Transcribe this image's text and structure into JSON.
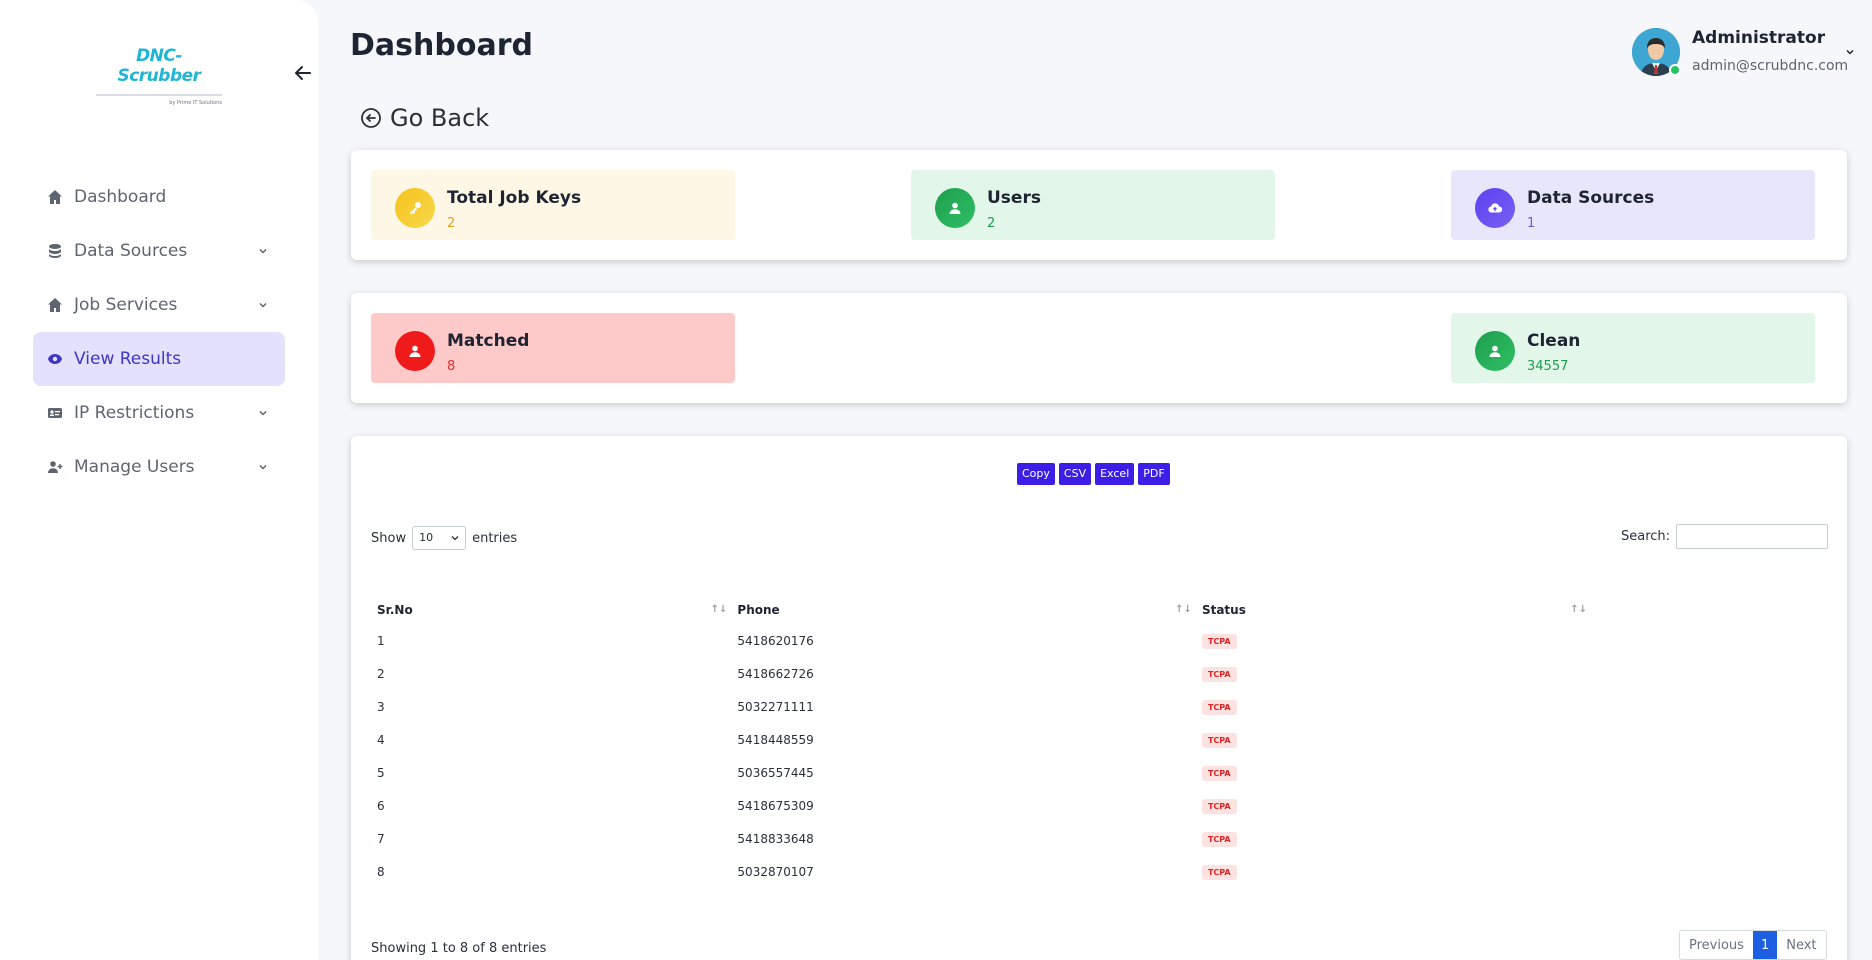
{
  "brand": {
    "name": "DNC-Scrubber",
    "tagline": "by Prime IT Solutions",
    "colors": {
      "accent": "#3d1ee6",
      "active_bg": "#e3e1fb",
      "logo": "#1fb6d6"
    }
  },
  "sidebar": {
    "items": [
      {
        "label": "Dashboard",
        "icon": "home-icon"
      },
      {
        "label": "Data Sources",
        "icon": "database-icon"
      },
      {
        "label": "Job Services",
        "icon": "home-icon"
      },
      {
        "label": "View Results",
        "icon": "eye-icon"
      },
      {
        "label": "IP Restrictions",
        "icon": "id-card-icon"
      },
      {
        "label": "Manage Users",
        "icon": "user-plus-icon"
      }
    ]
  },
  "header": {
    "title": "Dashboard",
    "user": {
      "name": "Administrator",
      "email": "admin@scrubdnc.com"
    }
  },
  "go_back": "Go Back",
  "stats_row1": [
    {
      "title": "Total Job Keys",
      "value": "2",
      "bg": "#fff7e6",
      "circle": "#f6c21b",
      "num_color": "#e0a31a",
      "icon": "key-icon"
    },
    {
      "title": "Users",
      "value": "2",
      "bg": "#e3f6ea",
      "circle": "#1e9e4c",
      "num_color": "#1e9e4c",
      "icon": "user-icon"
    },
    {
      "title": "Data Sources",
      "value": "1",
      "bg": "#e8e6fb",
      "circle": "#5b3ff0",
      "num_color": "#6b5bd9",
      "icon": "cloud-icon"
    }
  ],
  "stats_row2": [
    {
      "title": "Matched",
      "value": "8",
      "bg": "#fdc9c9",
      "circle": "#ef1b1b",
      "num_color": "#e23131",
      "icon": "user-icon"
    },
    {
      "title": "Clean",
      "value": "34557",
      "bg": "#e3f6ea",
      "circle": "#1e9e4c",
      "num_color": "#1e9e4c",
      "icon": "user-icon"
    }
  ],
  "table": {
    "export_buttons": [
      "Copy",
      "CSV",
      "Excel",
      "PDF"
    ],
    "show_label": "Show",
    "entries_label": "entries",
    "page_length": "10",
    "search_label": "Search:",
    "search_value": "",
    "columns": [
      "Sr.No",
      "Phone",
      "Status"
    ],
    "rows": [
      {
        "sr": "1",
        "phone": "5418620176",
        "status": "TCPA"
      },
      {
        "sr": "2",
        "phone": "5418662726",
        "status": "TCPA"
      },
      {
        "sr": "3",
        "phone": "5032271111",
        "status": "TCPA"
      },
      {
        "sr": "4",
        "phone": "5418448559",
        "status": "TCPA"
      },
      {
        "sr": "5",
        "phone": "5036557445",
        "status": "TCPA"
      },
      {
        "sr": "6",
        "phone": "5418675309",
        "status": "TCPA"
      },
      {
        "sr": "7",
        "phone": "5418833648",
        "status": "TCPA"
      },
      {
        "sr": "8",
        "phone": "5032870107",
        "status": "TCPA"
      }
    ],
    "info": "Showing 1 to 8 of 8 entries",
    "pager": {
      "prev": "Previous",
      "current": "1",
      "next": "Next"
    }
  }
}
